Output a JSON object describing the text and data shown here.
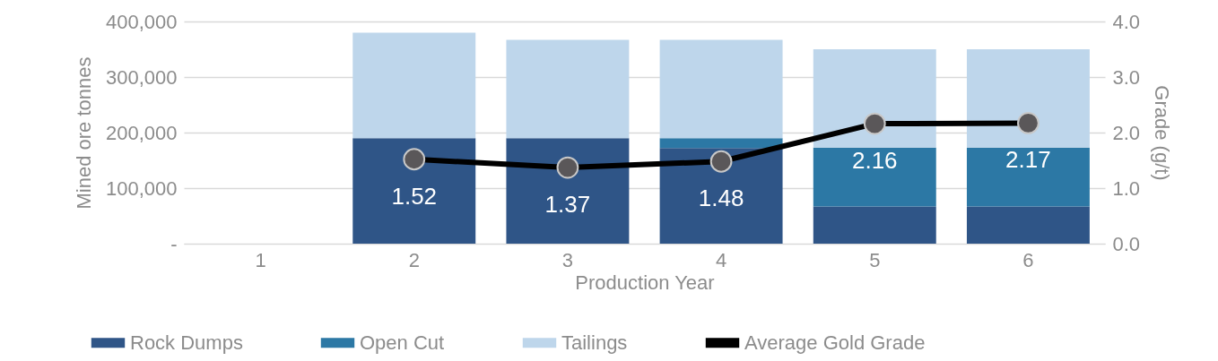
{
  "chart_data": {
    "type": "bar",
    "stacked": true,
    "xlabel": "Production Year",
    "ylabel": "Mined ore tonnes",
    "y2label": "Grade (g/t)",
    "categories": [
      "1",
      "2",
      "3",
      "4",
      "5",
      "6"
    ],
    "series": [
      {
        "name": "Rock Dumps",
        "color": "#2f5587",
        "values": [
          null,
          190000,
          190000,
          172000,
          67000,
          67000
        ]
      },
      {
        "name": "Open Cut",
        "color": "#2c78a5",
        "values": [
          null,
          null,
          null,
          18000,
          106000,
          106000
        ]
      },
      {
        "name": "Tailings",
        "color": "#bed6eb",
        "values": [
          null,
          190000,
          177000,
          177000,
          177000,
          177000
        ]
      },
      {
        "name": "Average Gold Grade",
        "type": "line",
        "axis": "y2",
        "color": "#000000",
        "marker": "circle",
        "values": [
          null,
          1.52,
          1.37,
          1.48,
          2.16,
          2.17
        ],
        "value_labels": [
          null,
          "1.52",
          "1.37",
          "1.48",
          "2.16",
          "2.17"
        ]
      }
    ],
    "ylim": [
      0,
      400000
    ],
    "yticks": [
      {
        "value": 0,
        "label": "-"
      },
      {
        "value": 100000,
        "label": "100,000"
      },
      {
        "value": 200000,
        "label": "200,000"
      },
      {
        "value": 300000,
        "label": "300,000"
      },
      {
        "value": 400000,
        "label": "400,000"
      }
    ],
    "y2lim": [
      0,
      4
    ],
    "y2ticks": [
      {
        "value": 0,
        "label": "0.0"
      },
      {
        "value": 1,
        "label": "1.0"
      },
      {
        "value": 2,
        "label": "2.0"
      },
      {
        "value": 3,
        "label": "3.0"
      },
      {
        "value": 4,
        "label": "4.0"
      }
    ],
    "grid": "y",
    "legend": "bottom"
  }
}
